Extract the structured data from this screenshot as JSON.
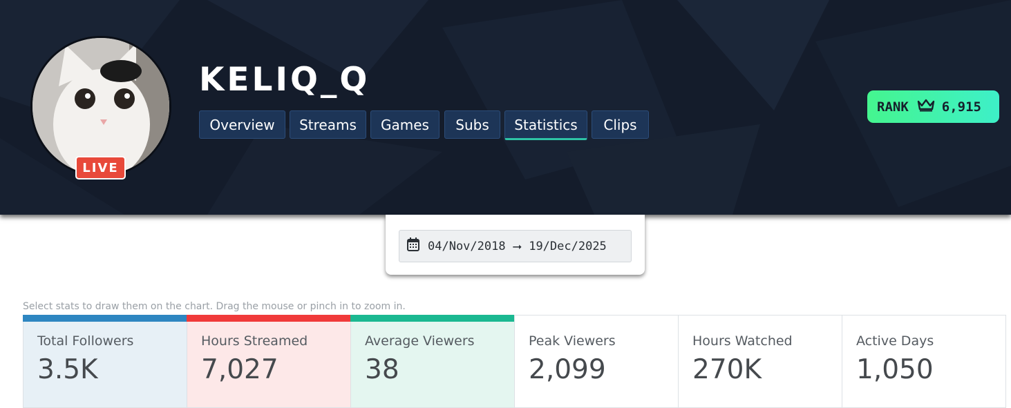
{
  "channel": {
    "name": "KELIQ_Q",
    "live_label": "LIVE"
  },
  "tabs": [
    {
      "label": "Overview",
      "active": false
    },
    {
      "label": "Streams",
      "active": false
    },
    {
      "label": "Games",
      "active": false
    },
    {
      "label": "Subs",
      "active": false
    },
    {
      "label": "Statistics",
      "active": true
    },
    {
      "label": "Clips",
      "active": false
    }
  ],
  "rank": {
    "label": "RANK",
    "icon": "crown-icon",
    "value": "6,915"
  },
  "date_range": {
    "icon": "calendar-icon",
    "start": "04/Nov/2018",
    "separator": "⭢",
    "end": "19/Dec/2025"
  },
  "hint": "Select stats to draw them on the chart. Drag the mouse or pinch in to zoom in.",
  "stats": [
    {
      "label": "Total Followers",
      "value": "3.5K",
      "selected": true,
      "color": "#2e86c1",
      "bg": "#e7f0f6"
    },
    {
      "label": "Hours Streamed",
      "value": "7,027",
      "selected": true,
      "color": "#f03a3a",
      "bg": "#fde8e8"
    },
    {
      "label": "Average Viewers",
      "value": "38",
      "selected": true,
      "color": "#1bb891",
      "bg": "#e4f6f0"
    },
    {
      "label": "Peak Viewers",
      "value": "2,099",
      "selected": false,
      "color": "",
      "bg": "#ffffff"
    },
    {
      "label": "Hours Watched",
      "value": "270K",
      "selected": false,
      "color": "",
      "bg": "#ffffff"
    },
    {
      "label": "Active Days",
      "value": "1,050",
      "selected": false,
      "color": "",
      "bg": "#ffffff"
    }
  ]
}
